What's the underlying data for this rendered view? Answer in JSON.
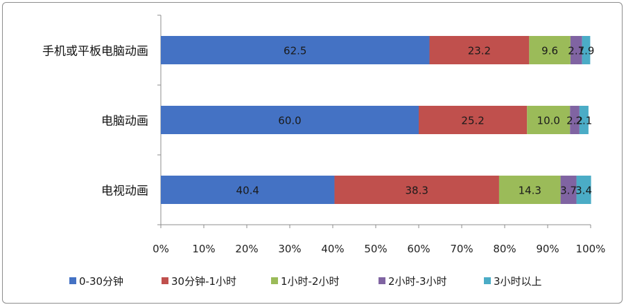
{
  "chart_data": {
    "type": "bar",
    "orientation": "horizontal",
    "stacked": true,
    "percent": true,
    "categories": [
      "手机或平板电脑动画",
      "电脑动画",
      "电视动画"
    ],
    "series": [
      {
        "name": "0-30分钟",
        "color": "#4472c4",
        "values": [
          62.5,
          60.0,
          40.4
        ],
        "labels": [
          "62.5",
          "60.0",
          "40.4"
        ]
      },
      {
        "name": "30分钟-1小时",
        "color": "#c0504d",
        "values": [
          23.2,
          25.2,
          38.3
        ],
        "labels": [
          "23.2",
          "25.2",
          "38.3"
        ]
      },
      {
        "name": "1小时-2小时",
        "color": "#9bbb59",
        "values": [
          9.6,
          10.0,
          14.3
        ],
        "labels": [
          "9.6",
          "10.0",
          "14.3"
        ]
      },
      {
        "name": "2小时-3小时",
        "color": "#8064a2",
        "values": [
          2.7,
          2.2,
          3.7
        ],
        "labels": [
          "2.7",
          "2.2",
          "3.7"
        ]
      },
      {
        "name": "3小时以上",
        "color": "#4bacc6",
        "values": [
          1.9,
          2.1,
          3.4
        ],
        "labels": [
          "1.9",
          "2.1",
          "3.4"
        ]
      }
    ],
    "xticks": [
      "0%",
      "10%",
      "20%",
      "30%",
      "40%",
      "50%",
      "60%",
      "70%",
      "80%",
      "90%",
      "100%"
    ],
    "xlim": [
      0,
      100
    ],
    "grid": false,
    "legend": "bottom"
  }
}
